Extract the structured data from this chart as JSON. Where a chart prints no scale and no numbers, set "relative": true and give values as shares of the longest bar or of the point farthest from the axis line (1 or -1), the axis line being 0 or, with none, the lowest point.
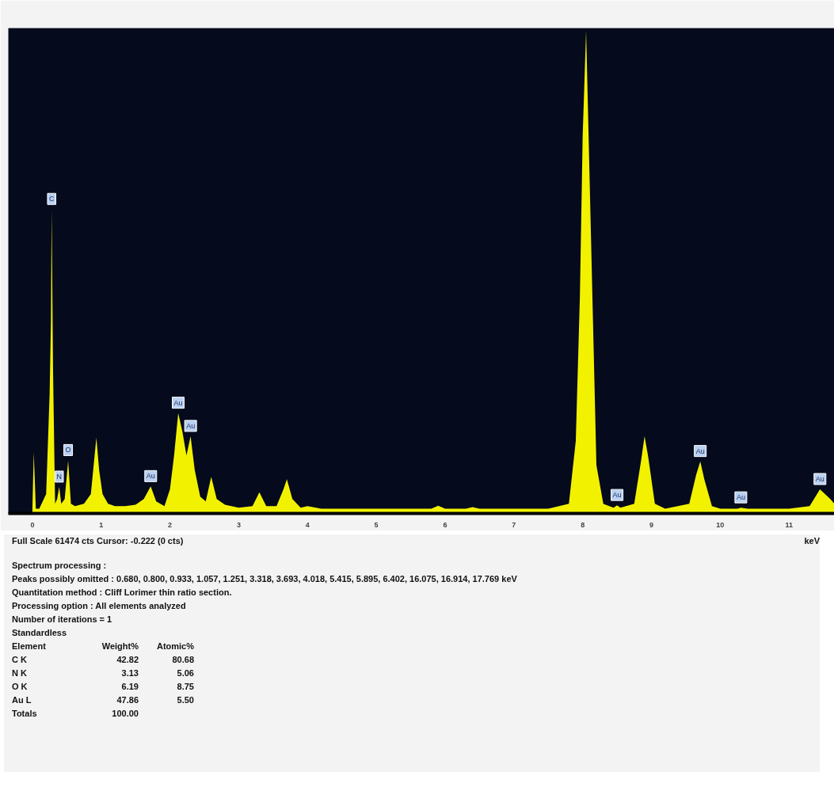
{
  "chart_data": {
    "type": "area",
    "relative": true,
    "xlabel": "keV",
    "x": [
      0,
      0.02,
      0.05,
      0.1,
      0.2,
      0.25,
      0.27,
      0.28,
      0.3,
      0.33,
      0.36,
      0.39,
      0.42,
      0.47,
      0.52,
      0.56,
      0.62,
      0.75,
      0.85,
      0.93,
      0.97,
      1.02,
      1.1,
      1.2,
      1.35,
      1.5,
      1.62,
      1.72,
      1.8,
      1.92,
      2.0,
      2.06,
      2.12,
      2.18,
      2.24,
      2.3,
      2.36,
      2.44,
      2.52,
      2.6,
      2.68,
      2.8,
      3.0,
      3.2,
      3.3,
      3.4,
      3.55,
      3.65,
      3.7,
      3.78,
      3.9,
      4.0,
      4.2,
      5.0,
      5.8,
      5.9,
      6.0,
      6.3,
      6.4,
      6.5,
      7.5,
      7.8,
      7.9,
      7.96,
      8.0,
      8.05,
      8.1,
      8.15,
      8.2,
      8.3,
      8.45,
      8.5,
      8.55,
      8.75,
      8.85,
      8.9,
      8.95,
      9.05,
      9.2,
      9.55,
      9.65,
      9.71,
      9.77,
      9.88,
      10.0,
      10.25,
      10.3,
      10.4,
      11.0,
      11.3,
      11.45,
      11.6,
      11.66
    ],
    "series": [
      {
        "color": "#f2f200",
        "values": [
          0.01,
          0.127,
          0.01,
          0.01,
          0.04,
          0.245,
          0.4,
          0.63,
          0.3,
          0.02,
          0.03,
          0.055,
          0.02,
          0.03,
          0.11,
          0.02,
          0.015,
          0.02,
          0.04,
          0.157,
          0.09,
          0.04,
          0.02,
          0.015,
          0.015,
          0.018,
          0.03,
          0.056,
          0.025,
          0.015,
          0.05,
          0.12,
          0.208,
          0.17,
          0.12,
          0.16,
          0.09,
          0.035,
          0.025,
          0.076,
          0.03,
          0.018,
          0.012,
          0.015,
          0.044,
          0.015,
          0.015,
          0.05,
          0.071,
          0.03,
          0.012,
          0.015,
          0.01,
          0.01,
          0.01,
          0.016,
          0.01,
          0.01,
          0.013,
          0.01,
          0.01,
          0.02,
          0.15,
          0.45,
          0.78,
          1.0,
          0.7,
          0.4,
          0.1,
          0.02,
          0.012,
          0.017,
          0.012,
          0.02,
          0.11,
          0.16,
          0.12,
          0.02,
          0.01,
          0.02,
          0.08,
          0.108,
          0.07,
          0.015,
          0.01,
          0.01,
          0.012,
          0.01,
          0.01,
          0.015,
          0.05,
          0.03,
          0.02
        ]
      }
    ],
    "xlim": [
      -0.35,
      11.66
    ],
    "xticks": [
      0,
      1,
      2,
      3,
      4,
      5,
      6,
      7,
      8,
      9,
      10,
      11
    ],
    "grid": false,
    "annotations": [
      {
        "text": "C",
        "x": 0.28,
        "y": 0.63
      },
      {
        "text": "N",
        "x": 0.39,
        "y": 0.055
      },
      {
        "text": "O",
        "x": 0.52,
        "y": 0.11
      },
      {
        "text": "Au",
        "x": 1.72,
        "y": 0.056
      },
      {
        "text": "Au",
        "x": 2.12,
        "y": 0.208
      },
      {
        "text": "Au",
        "x": 2.3,
        "y": 0.16
      },
      {
        "text": "Au",
        "x": 8.5,
        "y": 0.017
      },
      {
        "text": "Au",
        "x": 9.71,
        "y": 0.108
      },
      {
        "text": "Au",
        "x": 10.3,
        "y": 0.012
      },
      {
        "text": "Au",
        "x": 11.45,
        "y": 0.05
      },
      "Full Scale 61474 cts Cursor: -0.222  (0 cts)",
      "Spectrum processing :",
      "Peaks possibly omitted : 0.680, 0.800, 0.933, 1.057, 1.251, 3.318, 3.693, 4.018, 5.415, 5.895, 6.402, 16.075, 16.914, 17.769 keV",
      "Quantitation method : Cliff Lorimer thin ratio section.",
      "Processing option : All elements analyzed",
      "Number of iterations = 1",
      "Standardless",
      "Element    Weight%    Atomic%",
      "C K    42.82    80.68",
      "N K    3.13    5.06",
      "O K    6.19    8.75",
      "Au L    47.86    5.50",
      "Totals    100.00"
    ]
  }
}
